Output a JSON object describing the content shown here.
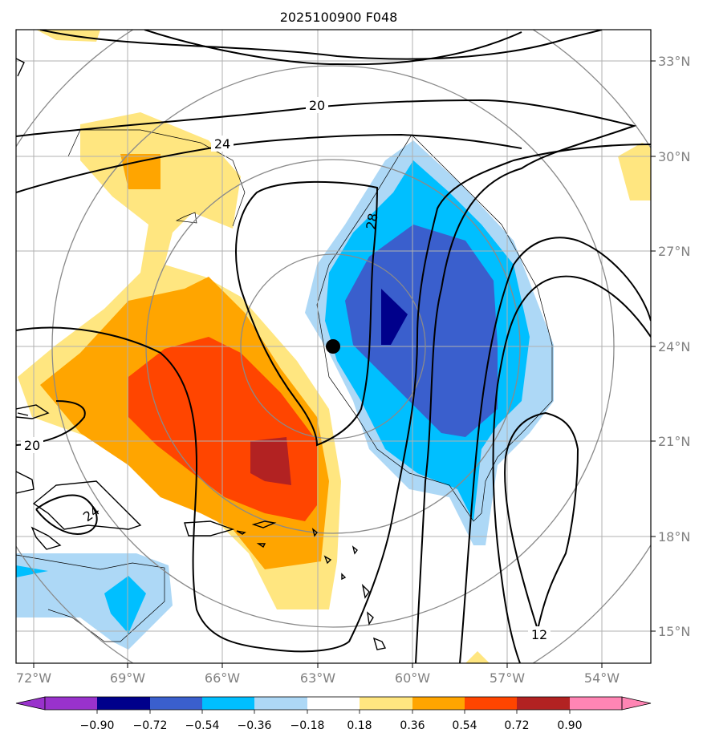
{
  "title": "2025100900 F048",
  "map": {
    "lon_ticks": [
      "72°W",
      "69°W",
      "66°W",
      "63°W",
      "60°W",
      "57°W",
      "54°W"
    ],
    "lat_ticks": [
      "33°N",
      "30°N",
      "27°N",
      "24°N",
      "21°N",
      "18°N",
      "15°N"
    ],
    "contour_labels": [
      "20",
      "24",
      "28",
      "20",
      "24",
      "12"
    ],
    "center_marker": {
      "lon": -62.5,
      "lat": 24.0
    }
  },
  "colorbar": {
    "ticks": [
      "−0.90",
      "−0.72",
      "−0.54",
      "−0.36",
      "−0.18",
      "0.18",
      "0.36",
      "0.54",
      "0.72",
      "0.90"
    ],
    "colors": [
      "#9932cc",
      "#00008b",
      "#3a5fcd",
      "#00bfff",
      "#add8f6",
      "#ffffff",
      "#ffe680",
      "#ffa500",
      "#ff4500",
      "#b22222",
      "#ff85b4"
    ]
  },
  "colors": {
    "neg1": "#add8f6",
    "neg2": "#00bfff",
    "neg3": "#3a5fcd",
    "neg4": "#00008b",
    "pos1": "#ffe680",
    "pos2": "#ffa500",
    "pos3": "#ff4500",
    "pos4": "#b22222"
  }
}
